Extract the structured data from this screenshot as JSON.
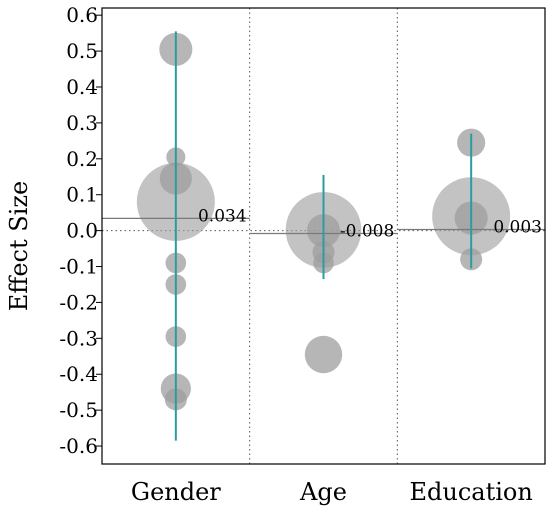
{
  "chart_data": {
    "type": "scatter",
    "ylabel": "Effect Size",
    "ylim": [
      -0.65,
      0.62
    ],
    "yticks": [
      0.6,
      0.5,
      0.4,
      0.3,
      0.2,
      0.1,
      0.0,
      -0.1,
      -0.2,
      -0.3,
      -0.4,
      -0.5,
      -0.6
    ],
    "ytick_labels": [
      "0.6",
      "0.5",
      "0.4",
      "0.3",
      "0.2",
      "0.1",
      "0.0",
      "-0.1",
      "-0.2",
      "-0.3",
      "-0.4",
      "-0.5",
      "-0.6"
    ],
    "grid": "dotted zero line and dotted category separators",
    "colors": {
      "point": "#9e9e9e",
      "interval": "#2a9d9f",
      "mean_line": "#7a7a7a",
      "frame": "#000000"
    },
    "categories": [
      {
        "name": "Gender",
        "mean": 0.034,
        "mean_label": "0.034",
        "interval": [
          -0.585,
          0.555
        ],
        "pooled": {
          "y": 0.08,
          "size": 1.0
        },
        "points": [
          {
            "y": 0.505,
            "size": 0.18
          },
          {
            "y": 0.205,
            "size": 0.06
          },
          {
            "y": 0.145,
            "size": 0.17
          },
          {
            "y": -0.09,
            "size": 0.07
          },
          {
            "y": -0.15,
            "size": 0.07
          },
          {
            "y": -0.295,
            "size": 0.07
          },
          {
            "y": -0.44,
            "size": 0.15
          },
          {
            "y": -0.47,
            "size": 0.08
          }
        ]
      },
      {
        "name": "Age",
        "mean": -0.008,
        "mean_label": "-0.008",
        "interval": [
          -0.135,
          0.155
        ],
        "pooled": {
          "y": 0.002,
          "size": 0.94
        },
        "points": [
          {
            "y": 0.0,
            "size": 0.18
          },
          {
            "y": -0.06,
            "size": 0.08
          },
          {
            "y": -0.09,
            "size": 0.07
          },
          {
            "y": -0.345,
            "size": 0.23
          }
        ]
      },
      {
        "name": "Education",
        "mean": 0.003,
        "mean_label": "0.003",
        "interval": [
          -0.105,
          0.27
        ],
        "pooled": {
          "y": 0.04,
          "size": 1.0
        },
        "points": [
          {
            "y": 0.245,
            "size": 0.13
          },
          {
            "y": 0.035,
            "size": 0.18
          },
          {
            "y": -0.08,
            "size": 0.08
          }
        ]
      }
    ]
  }
}
